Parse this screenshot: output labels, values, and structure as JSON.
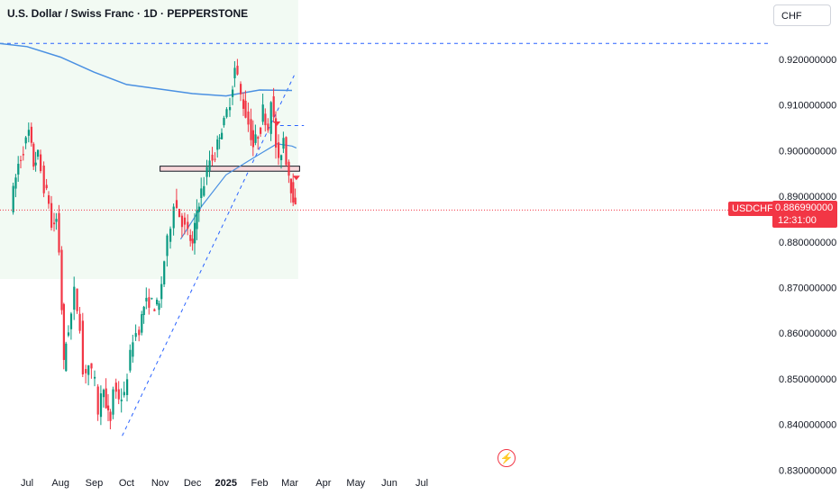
{
  "header": {
    "title": "U.S. Dollar / Swiss Franc · 1D · PEPPERSTONE",
    "currency_button": "CHF"
  },
  "price_tags": {
    "symbol": "USDCHF",
    "last_price": "0.886990000",
    "countdown": "12:31:00"
  },
  "colors": {
    "up": "#089981",
    "down": "#f23645",
    "ma_line": "#4a90e2",
    "trendline": "#2962ff",
    "zone_fill": "#e8f5e9"
  },
  "chart_data": {
    "type": "candlestick",
    "title": "U.S. Dollar / Swiss Franc · 1D · PEPPERSTONE",
    "ylim": [
      0.825,
      0.9265
    ],
    "y_ticks": [
      "0.920000000",
      "0.910000000",
      "0.900000000",
      "0.890000000",
      "0.880000000",
      "0.870000000",
      "0.860000000",
      "0.850000000",
      "0.840000000",
      "0.830000000"
    ],
    "x_ticks": [
      {
        "label": "Jul",
        "date": "2024-07-01"
      },
      {
        "label": "Aug",
        "date": "2024-08-01"
      },
      {
        "label": "Sep",
        "date": "2024-09-01"
      },
      {
        "label": "Oct",
        "date": "2024-10-01"
      },
      {
        "label": "Nov",
        "date": "2024-11-01"
      },
      {
        "label": "Dec",
        "date": "2024-12-01"
      },
      {
        "label": "2025",
        "date": "2025-01-01"
      },
      {
        "label": "Feb",
        "date": "2025-02-01"
      },
      {
        "label": "Mar",
        "date": "2025-03-01"
      },
      {
        "label": "Apr",
        "date": "2025-04-01"
      },
      {
        "label": "May",
        "date": "2025-05-01"
      },
      {
        "label": "Jun",
        "date": "2025-06-01"
      },
      {
        "label": "Jul",
        "date": "2025-07-01"
      }
    ],
    "last_price": 0.88699,
    "price_path": [
      [
        "2024-06-17",
        0.888
      ],
      [
        "2024-06-24",
        0.897
      ],
      [
        "2024-07-01",
        0.902
      ],
      [
        "2024-07-04",
        0.904
      ],
      [
        "2024-07-08",
        0.897
      ],
      [
        "2024-07-12",
        0.899
      ],
      [
        "2024-07-18",
        0.892
      ],
      [
        "2024-07-22",
        0.889
      ],
      [
        "2024-07-25",
        0.883
      ],
      [
        "2024-07-29",
        0.885
      ],
      [
        "2024-08-01",
        0.878
      ],
      [
        "2024-08-05",
        0.853
      ],
      [
        "2024-08-07",
        0.858
      ],
      [
        "2024-08-12",
        0.864
      ],
      [
        "2024-08-15",
        0.869
      ],
      [
        "2024-08-20",
        0.862
      ],
      [
        "2024-08-23",
        0.851
      ],
      [
        "2024-08-28",
        0.853
      ],
      [
        "2024-09-03",
        0.849
      ],
      [
        "2024-09-06",
        0.843
      ],
      [
        "2024-09-11",
        0.849
      ],
      [
        "2024-09-13",
        0.843
      ],
      [
        "2024-09-17",
        0.841
      ],
      [
        "2024-09-20",
        0.848
      ],
      [
        "2024-09-25",
        0.846
      ],
      [
        "2024-09-30",
        0.846
      ],
      [
        "2024-10-03",
        0.851
      ],
      [
        "2024-10-08",
        0.859
      ],
      [
        "2024-10-14",
        0.861
      ],
      [
        "2024-10-18",
        0.866
      ],
      [
        "2024-10-23",
        0.867
      ],
      [
        "2024-10-28",
        0.866
      ],
      [
        "2024-11-01",
        0.866
      ],
      [
        "2024-11-06",
        0.876
      ],
      [
        "2024-11-12",
        0.884
      ],
      [
        "2024-11-15",
        0.889
      ],
      [
        "2024-11-20",
        0.886
      ],
      [
        "2024-11-25",
        0.883
      ],
      [
        "2024-11-28",
        0.882
      ],
      [
        "2024-12-02",
        0.879
      ],
      [
        "2024-12-06",
        0.887
      ],
      [
        "2024-12-10",
        0.891
      ],
      [
        "2024-12-13",
        0.893
      ],
      [
        "2024-12-18",
        0.898
      ],
      [
        "2024-12-23",
        0.899
      ],
      [
        "2024-12-27",
        0.904
      ],
      [
        "2024-12-31",
        0.906
      ],
      [
        "2025-01-06",
        0.911
      ],
      [
        "2025-01-10",
        0.918
      ],
      [
        "2025-01-13",
        0.916
      ],
      [
        "2025-01-16",
        0.912
      ],
      [
        "2025-01-20",
        0.908
      ],
      [
        "2025-01-23",
        0.906
      ],
      [
        "2025-01-27",
        0.901
      ],
      [
        "2025-02-03",
        0.905
      ],
      [
        "2025-02-05",
        0.909
      ],
      [
        "2025-02-10",
        0.905
      ],
      [
        "2025-02-13",
        0.912
      ],
      [
        "2025-02-17",
        0.901
      ],
      [
        "2025-02-20",
        0.897
      ],
      [
        "2025-02-24",
        0.903
      ],
      [
        "2025-02-27",
        0.898
      ],
      [
        "2025-03-03",
        0.892
      ],
      [
        "2025-03-05",
        0.89
      ],
      [
        "2025-03-07",
        0.887
      ]
    ],
    "ma": [
      [
        "2024-06-01",
        0.9236
      ],
      [
        "2024-07-01",
        0.9228
      ],
      [
        "2024-08-01",
        0.9205
      ],
      [
        "2024-09-01",
        0.9172
      ],
      [
        "2024-10-01",
        0.9145
      ],
      [
        "2024-11-01",
        0.9135
      ],
      [
        "2024-12-01",
        0.9125
      ],
      [
        "2025-01-01",
        0.912
      ],
      [
        "2025-02-01",
        0.9133
      ],
      [
        "2025-03-03",
        0.9132
      ]
    ],
    "ema": [
      [
        "2024-11-20",
        0.8806
      ],
      [
        "2024-12-10",
        0.888
      ],
      [
        "2025-01-01",
        0.8947
      ],
      [
        "2025-01-20",
        0.8975
      ],
      [
        "2025-02-03",
        0.8995
      ],
      [
        "2025-02-17",
        0.9015
      ],
      [
        "2025-03-03",
        0.901
      ],
      [
        "2025-03-07",
        0.9006
      ]
    ],
    "resistance_dashed": 0.9235,
    "short_dashed": 0.9055,
    "zone": [
      0.8955,
      0.8966
    ],
    "trendline": [
      [
        "2024-09-27",
        0.8375
      ],
      [
        "2025-03-05",
        0.9165
      ]
    ]
  }
}
